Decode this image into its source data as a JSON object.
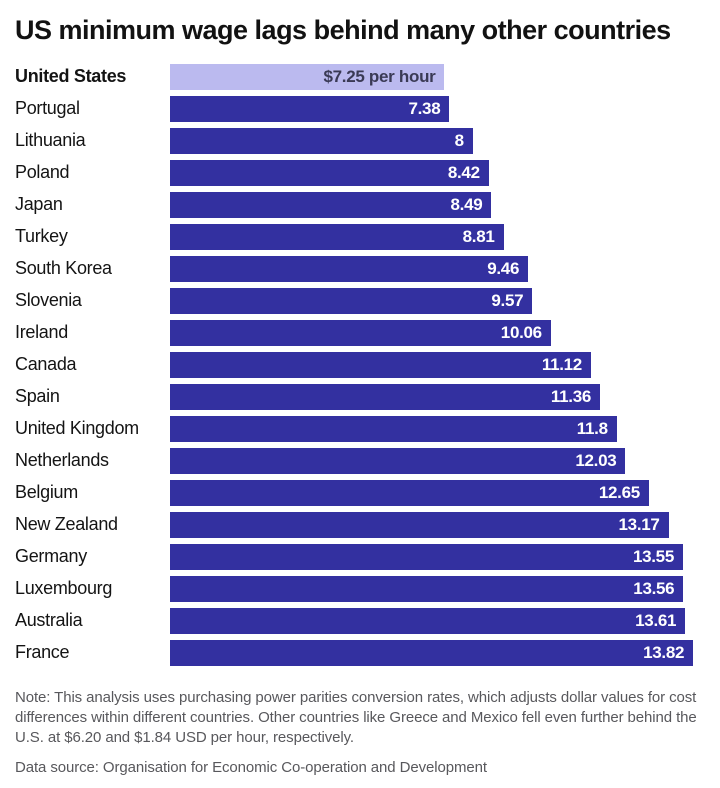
{
  "chart_data": {
    "type": "bar",
    "orientation": "horizontal",
    "title": "US minimum wage lags behind many other countries",
    "categories": [
      "United States",
      "Portugal",
      "Lithuania",
      "Poland",
      "Japan",
      "Turkey",
      "South Korea",
      "Slovenia",
      "Ireland",
      "Canada",
      "Spain",
      "United Kingdom",
      "Netherlands",
      "Belgium",
      "New Zealand",
      "Germany",
      "Luxembourg",
      "Australia",
      "France"
    ],
    "values": [
      7.25,
      7.38,
      8,
      8.42,
      8.49,
      8.81,
      9.46,
      9.57,
      10.06,
      11.12,
      11.36,
      11.8,
      12.03,
      12.65,
      13.17,
      13.55,
      13.56,
      13.61,
      13.82
    ],
    "value_labels": [
      "$7.25 per hour",
      "7.38",
      "8",
      "8.42",
      "8.49",
      "8.81",
      "9.46",
      "9.57",
      "10.06",
      "11.12",
      "11.36",
      "11.8",
      "12.03",
      "12.65",
      "13.17",
      "13.55",
      "13.56",
      "13.61",
      "13.82"
    ],
    "highlight_index": 0,
    "xlim": [
      0,
      14
    ],
    "grid": false,
    "legend": false,
    "note": "Note: This analysis uses purchasing power parities conversion rates, which adjusts dollar values for cost differences within different countries. Other countries like Greece and Mexico fell even further behind the U.S. at $6.20 and $1.84 USD per hour, respectively.",
    "source": "Data source: Organisation for Economic Co-operation and Development",
    "colors": {
      "bar": "#3330A0",
      "highlight_bar": "#BBBAEF",
      "bar_label": "#FFFFFF",
      "highlight_bar_label": "#3A3A55",
      "title_text": "#121212",
      "category_text": "#141414",
      "note_text": "#58585C"
    }
  }
}
